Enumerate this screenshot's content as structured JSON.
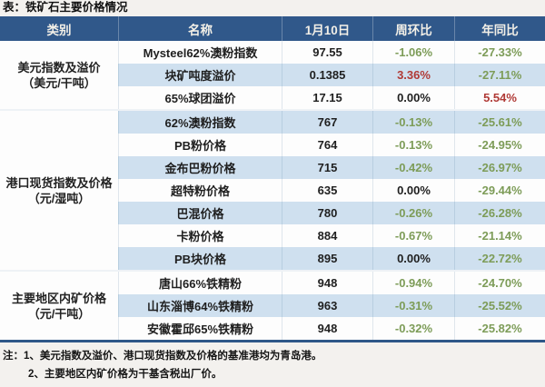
{
  "title": "表：铁矿石主要价格情况",
  "notes": [
    "注：1、美元指数及溢价、港口现货指数及价格的基准港均为青岛港。",
    "2、主要地区内矿价格为干基含税出厂价。"
  ],
  "colors": {
    "header_bg": "#30588a",
    "header_text": "#f2efe7",
    "stripe_row": "#cfe0ef",
    "up_red": "#b03a36",
    "down_green": "#7d9c58",
    "flat_black": "#1f1f1f",
    "bottom_border": "#2e5788"
  },
  "chart_data": {
    "type": "table",
    "title": "表：铁矿石主要价格情况",
    "columns": [
      "类别",
      "名称",
      "1月10日",
      "周环比",
      "年同比"
    ],
    "sections": [
      {
        "category": "美元指数及溢价",
        "unit": "（美元/干吨）",
        "rows": [
          {
            "name": "Mysteel62%澳粉指数",
            "value": "97.55",
            "wow": "-1.06%",
            "wow_tone": "down",
            "yoy": "-27.33%",
            "yoy_tone": "down"
          },
          {
            "name": "块矿吨度溢价",
            "value": "0.1385",
            "wow": "3.36%",
            "wow_tone": "up",
            "yoy": "-27.11%",
            "yoy_tone": "down"
          },
          {
            "name": "65%球团溢价",
            "value": "17.15",
            "wow": "0.00%",
            "wow_tone": "flat",
            "yoy": "5.54%",
            "yoy_tone": "up"
          }
        ]
      },
      {
        "category": "港口现货指数及价格",
        "unit": "（元/湿吨）",
        "rows": [
          {
            "name": "62%澳粉指数",
            "value": "767",
            "wow": "-0.13%",
            "wow_tone": "down",
            "yoy": "-25.61%",
            "yoy_tone": "down"
          },
          {
            "name": "PB粉价格",
            "value": "764",
            "wow": "-0.13%",
            "wow_tone": "down",
            "yoy": "-24.95%",
            "yoy_tone": "down"
          },
          {
            "name": "金布巴粉价格",
            "value": "715",
            "wow": "-0.42%",
            "wow_tone": "down",
            "yoy": "-26.97%",
            "yoy_tone": "down"
          },
          {
            "name": "超特粉价格",
            "value": "635",
            "wow": "0.00%",
            "wow_tone": "flat",
            "yoy": "-29.44%",
            "yoy_tone": "down"
          },
          {
            "name": "巴混价格",
            "value": "780",
            "wow": "-0.26%",
            "wow_tone": "down",
            "yoy": "-26.28%",
            "yoy_tone": "down"
          },
          {
            "name": "卡粉价格",
            "value": "884",
            "wow": "-0.67%",
            "wow_tone": "down",
            "yoy": "-21.14%",
            "yoy_tone": "down"
          },
          {
            "name": "PB块价格",
            "value": "895",
            "wow": "0.00%",
            "wow_tone": "flat",
            "yoy": "-22.72%",
            "yoy_tone": "down"
          }
        ]
      },
      {
        "category": "主要地区内矿价格",
        "unit": "（元/干吨）",
        "rows": [
          {
            "name": "唐山66%铁精粉",
            "value": "948",
            "wow": "-0.94%",
            "wow_tone": "down",
            "yoy": "-24.70%",
            "yoy_tone": "down"
          },
          {
            "name": "山东淄博64%铁精粉",
            "value": "963",
            "wow": "-0.31%",
            "wow_tone": "down",
            "yoy": "-25.52%",
            "yoy_tone": "down"
          },
          {
            "name": "安徽霍邱65%铁精粉",
            "value": "948",
            "wow": "-0.32%",
            "wow_tone": "down",
            "yoy": "-25.82%",
            "yoy_tone": "down"
          }
        ]
      }
    ]
  }
}
